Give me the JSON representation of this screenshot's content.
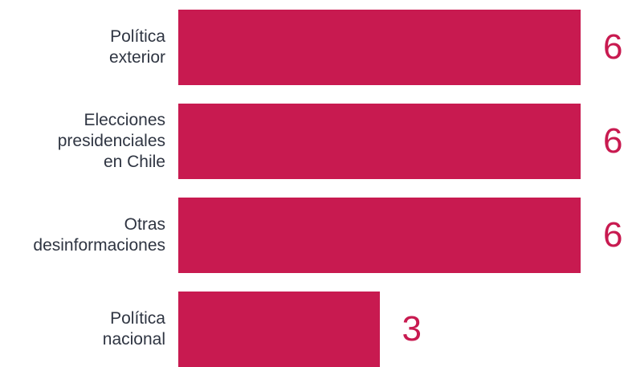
{
  "chart_data": {
    "type": "bar",
    "orientation": "horizontal",
    "title": "",
    "xlabel": "",
    "ylabel": "",
    "categories": [
      "Política exterior",
      "Elecciones presidenciales en Chile",
      "Otras desinformaciones",
      "Política nacional"
    ],
    "category_lines": [
      [
        "Política",
        "exterior"
      ],
      [
        "Elecciones",
        "presidenciales",
        "en Chile"
      ],
      [
        "Otras",
        "desinformaciones"
      ],
      [
        "Política",
        "nacional"
      ]
    ],
    "values": [
      6,
      6,
      6,
      3
    ],
    "xlim": [
      0,
      6
    ],
    "grid": false,
    "legend": false,
    "bar_color": "#c81a50",
    "value_label_color": "#c81a50",
    "category_label_color": "#2f3542"
  }
}
